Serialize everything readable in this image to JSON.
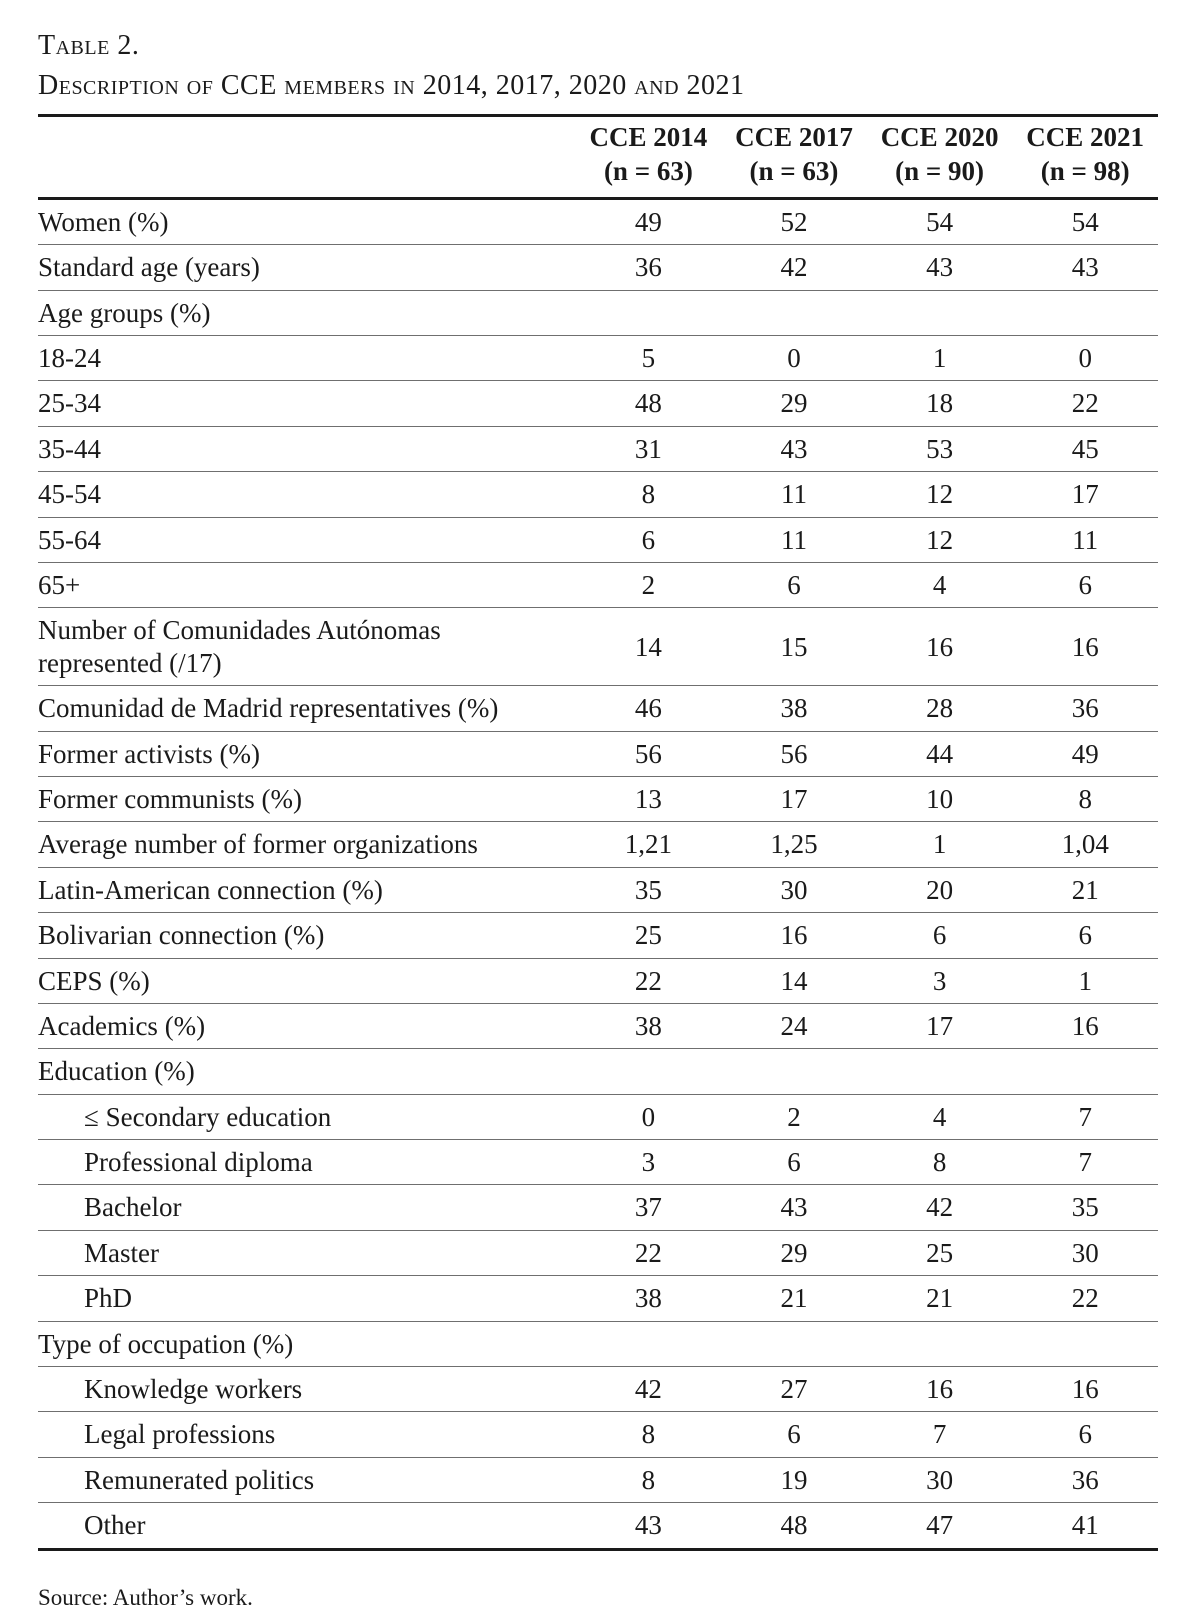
{
  "title": "Table 2.",
  "subtitle": "Description of CCE members in 2014, 2017, 2020 and 2021",
  "source": "Source: Author’s work.",
  "chart_data": {
    "type": "table",
    "title": "Description of CCE members in 2014, 2017, 2020 and 2021",
    "columns": [
      {
        "label": "CCE 2014",
        "sub": "(n = 63)"
      },
      {
        "label": "CCE 2017",
        "sub": "(n = 63)"
      },
      {
        "label": "CCE 2020",
        "sub": "(n = 90)"
      },
      {
        "label": "CCE 2021",
        "sub": "(n = 98)"
      }
    ],
    "rows": [
      {
        "label": "Women (%)",
        "type": "data",
        "indent": false,
        "values": [
          "49",
          "52",
          "54",
          "54"
        ]
      },
      {
        "label": "Standard age (years)",
        "type": "data",
        "indent": false,
        "values": [
          "36",
          "42",
          "43",
          "43"
        ]
      },
      {
        "label": "Age groups (%)",
        "type": "section",
        "indent": false,
        "values": [
          "",
          "",
          "",
          ""
        ]
      },
      {
        "label": "18-24",
        "type": "data",
        "indent": false,
        "values": [
          "5",
          "0",
          "1",
          "0"
        ]
      },
      {
        "label": "25-34",
        "type": "data",
        "indent": false,
        "values": [
          "48",
          "29",
          "18",
          "22"
        ]
      },
      {
        "label": "35-44",
        "type": "data",
        "indent": false,
        "values": [
          "31",
          "43",
          "53",
          "45"
        ]
      },
      {
        "label": "45-54",
        "type": "data",
        "indent": false,
        "values": [
          "8",
          "11",
          "12",
          "17"
        ]
      },
      {
        "label": "55-64",
        "type": "data",
        "indent": false,
        "values": [
          "6",
          "11",
          "12",
          "11"
        ]
      },
      {
        "label": "65+",
        "type": "data",
        "indent": false,
        "values": [
          "2",
          "6",
          "4",
          "6"
        ]
      },
      {
        "label": "Number of Comunidades Autónomas represented (/17)",
        "type": "data",
        "indent": false,
        "values": [
          "14",
          "15",
          "16",
          "16"
        ]
      },
      {
        "label": "Comunidad de Madrid representatives (%)",
        "type": "data",
        "indent": false,
        "values": [
          "46",
          "38",
          "28",
          "36"
        ]
      },
      {
        "label": "Former activists (%)",
        "type": "data",
        "indent": false,
        "values": [
          "56",
          "56",
          "44",
          "49"
        ]
      },
      {
        "label": "Former communists (%)",
        "type": "data",
        "indent": false,
        "values": [
          "13",
          "17",
          "10",
          "8"
        ]
      },
      {
        "label": "Average number of former organizations",
        "type": "data",
        "indent": false,
        "values": [
          "1,21",
          "1,25",
          "1",
          "1,04"
        ]
      },
      {
        "label": "Latin-American connection (%)",
        "type": "data",
        "indent": false,
        "values": [
          "35",
          "30",
          "20",
          "21"
        ]
      },
      {
        "label": "Bolivarian connection (%)",
        "type": "data",
        "indent": false,
        "values": [
          "25",
          "16",
          "6",
          "6"
        ]
      },
      {
        "label": "CEPS (%)",
        "type": "data",
        "indent": false,
        "values": [
          "22",
          "14",
          "3",
          "1"
        ]
      },
      {
        "label": "Academics (%)",
        "type": "data",
        "indent": false,
        "values": [
          "38",
          "24",
          "17",
          "16"
        ]
      },
      {
        "label": "Education (%)",
        "type": "section",
        "indent": false,
        "values": [
          "",
          "",
          "",
          ""
        ]
      },
      {
        "label": "≤ Secondary education",
        "type": "data",
        "indent": true,
        "values": [
          "0",
          "2",
          "4",
          "7"
        ]
      },
      {
        "label": "Professional diploma",
        "type": "data",
        "indent": true,
        "values": [
          "3",
          "6",
          "8",
          "7"
        ]
      },
      {
        "label": "Bachelor",
        "type": "data",
        "indent": true,
        "values": [
          "37",
          "43",
          "42",
          "35"
        ]
      },
      {
        "label": "Master",
        "type": "data",
        "indent": true,
        "values": [
          "22",
          "29",
          "25",
          "30"
        ]
      },
      {
        "label": "PhD",
        "type": "data",
        "indent": true,
        "values": [
          "38",
          "21",
          "21",
          "22"
        ]
      },
      {
        "label": "Type of occupation (%)",
        "type": "section",
        "indent": false,
        "values": [
          "",
          "",
          "",
          ""
        ]
      },
      {
        "label": "Knowledge workers",
        "type": "data",
        "indent": true,
        "values": [
          "42",
          "27",
          "16",
          "16"
        ]
      },
      {
        "label": "Legal professions",
        "type": "data",
        "indent": true,
        "values": [
          "8",
          "6",
          "7",
          "6"
        ]
      },
      {
        "label": "Remunerated politics",
        "type": "data",
        "indent": true,
        "values": [
          "8",
          "19",
          "30",
          "36"
        ]
      },
      {
        "label": "Other",
        "type": "data",
        "indent": true,
        "values": [
          "43",
          "48",
          "47",
          "41"
        ]
      }
    ]
  }
}
